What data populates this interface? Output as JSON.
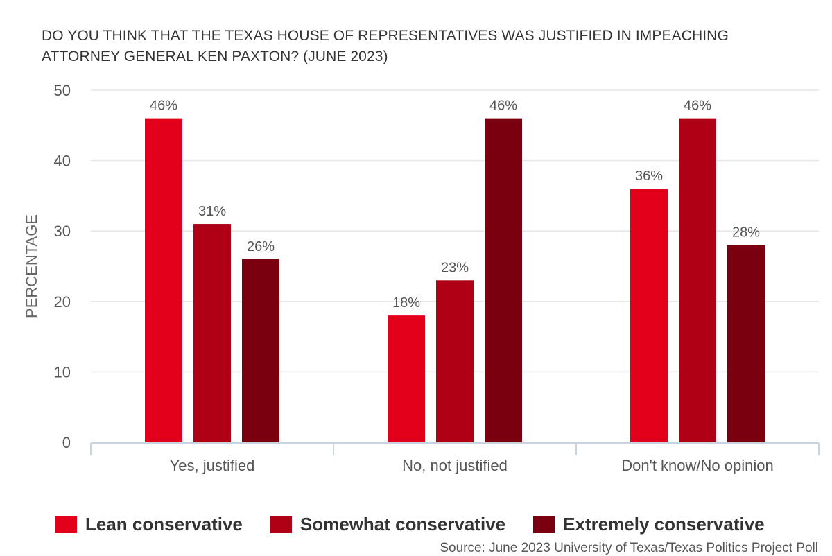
{
  "chart_data": {
    "type": "bar",
    "title_lines": [
      "DO YOU THINK THAT THE TEXAS HOUSE OF REPRESENTATIVES WAS JUSTIFIED IN IMPEACHING",
      "ATTORNEY GENERAL KEN PAXTON? (JUNE 2023)"
    ],
    "ylabel": "PERCENTAGE",
    "ylim": [
      0,
      50
    ],
    "yticks": [
      0,
      10,
      20,
      30,
      40,
      50
    ],
    "grid": true,
    "categories": [
      "Yes, justified",
      "No, not justified",
      "Don't know/No opinion"
    ],
    "series": [
      {
        "name": "Lean conservative",
        "color": "#e2001a",
        "values": [
          46,
          18,
          36
        ],
        "labels": [
          "46%",
          "18%",
          "36%"
        ]
      },
      {
        "name": "Somewhat conservative",
        "color": "#b00016",
        "values": [
          31,
          23,
          46
        ],
        "labels": [
          "31%",
          "23%",
          "46%"
        ]
      },
      {
        "name": "Extremely conservative",
        "color": "#7a0010",
        "values": [
          26,
          46,
          28
        ],
        "labels": [
          "26%",
          "46%",
          "28%"
        ]
      }
    ],
    "legend_position": "bottom",
    "source": "Source: June 2023 University of Texas/Texas Politics Project Poll"
  }
}
